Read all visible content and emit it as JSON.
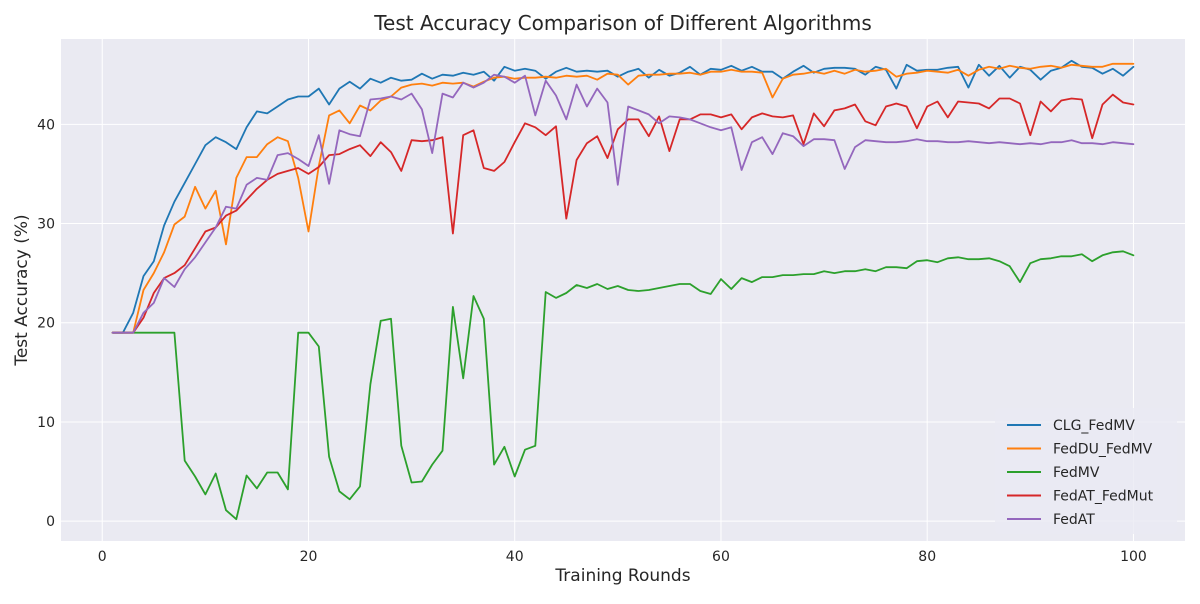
{
  "chart_data": {
    "type": "line",
    "title": "Test Accuracy Comparison of Different Algorithms",
    "xlabel": "Training Rounds",
    "ylabel": "Test Accuracy (%)",
    "xlim": [
      -4,
      105
    ],
    "ylim": [
      -2,
      48.6
    ],
    "xticks": [
      0,
      20,
      40,
      60,
      80,
      100
    ],
    "yticks": [
      0,
      10,
      20,
      30,
      40
    ],
    "grid": true,
    "legend_position": "lower-right",
    "x": [
      1,
      2,
      3,
      4,
      5,
      6,
      7,
      8,
      9,
      10,
      11,
      12,
      13,
      14,
      15,
      16,
      17,
      18,
      19,
      20,
      21,
      22,
      23,
      24,
      25,
      26,
      27,
      28,
      29,
      30,
      31,
      32,
      33,
      34,
      35,
      36,
      37,
      38,
      39,
      40,
      41,
      42,
      43,
      44,
      45,
      46,
      47,
      48,
      49,
      50,
      51,
      52,
      53,
      54,
      55,
      56,
      57,
      58,
      59,
      60,
      61,
      62,
      63,
      64,
      65,
      66,
      67,
      68,
      69,
      70,
      71,
      72,
      73,
      74,
      75,
      76,
      77,
      78,
      79,
      80,
      81,
      82,
      83,
      84,
      85,
      86,
      87,
      88,
      89,
      90,
      91,
      92,
      93,
      94,
      95,
      96,
      97,
      98,
      99,
      100
    ],
    "series": [
      {
        "name": "CLG_FedMV",
        "color": "#1f77b4",
        "values": [
          19.0,
          19.0,
          21.0,
          24.7,
          26.2,
          29.8,
          32.2,
          34.1,
          36.0,
          37.9,
          38.7,
          38.2,
          37.5,
          39.7,
          41.3,
          41.1,
          41.8,
          42.5,
          42.8,
          42.8,
          43.6,
          42.0,
          43.6,
          44.3,
          43.6,
          44.6,
          44.2,
          44.7,
          44.4,
          44.5,
          45.1,
          44.6,
          45.0,
          44.9,
          45.2,
          45.0,
          45.3,
          44.4,
          45.8,
          45.4,
          45.6,
          45.4,
          44.6,
          45.3,
          45.7,
          45.3,
          45.4,
          45.3,
          45.4,
          44.8,
          45.3,
          45.6,
          44.7,
          45.5,
          44.9,
          45.2,
          45.8,
          45.0,
          45.6,
          45.5,
          45.9,
          45.4,
          45.8,
          45.3,
          45.3,
          44.6,
          45.3,
          45.9,
          45.2,
          45.6,
          45.7,
          45.7,
          45.6,
          45.0,
          45.8,
          45.5,
          43.6,
          46.0,
          45.4,
          45.5,
          45.5,
          45.7,
          45.8,
          43.7,
          46.0,
          44.9,
          45.9,
          44.7,
          45.8,
          45.5,
          44.5,
          45.4,
          45.7,
          46.4,
          45.8,
          45.7,
          45.1,
          45.6,
          44.9,
          45.8
        ]
      },
      {
        "name": "FedDU_FedMV",
        "color": "#ff7f0e",
        "values": [
          19.0,
          19.0,
          19.0,
          23.3,
          25.0,
          27.1,
          29.9,
          30.7,
          33.7,
          31.5,
          33.3,
          27.9,
          34.6,
          36.7,
          36.7,
          38.0,
          38.7,
          38.3,
          34.6,
          29.2,
          35.8,
          40.9,
          41.4,
          40.1,
          41.9,
          41.4,
          42.4,
          42.8,
          43.7,
          44.0,
          44.1,
          43.9,
          44.2,
          44.1,
          44.2,
          43.8,
          44.3,
          44.7,
          44.8,
          44.6,
          44.7,
          44.7,
          44.8,
          44.7,
          44.9,
          44.8,
          44.9,
          44.5,
          45.1,
          45.0,
          44.0,
          44.9,
          45.0,
          45.0,
          45.1,
          45.1,
          45.2,
          45.0,
          45.3,
          45.3,
          45.5,
          45.3,
          45.3,
          45.2,
          42.7,
          44.6,
          45.0,
          45.1,
          45.3,
          45.1,
          45.4,
          45.1,
          45.5,
          45.3,
          45.4,
          45.6,
          44.8,
          45.1,
          45.2,
          45.4,
          45.3,
          45.2,
          45.5,
          44.9,
          45.5,
          45.8,
          45.6,
          45.9,
          45.7,
          45.6,
          45.8,
          45.9,
          45.7,
          46.0,
          45.9,
          45.8,
          45.8,
          46.1,
          46.1,
          46.1
        ]
      },
      {
        "name": "FedMV",
        "color": "#2ca02c",
        "values": [
          19.0,
          19.0,
          19.0,
          19.0,
          19.0,
          19.0,
          19.0,
          6.1,
          4.5,
          2.7,
          4.8,
          1.1,
          0.2,
          4.6,
          3.3,
          4.9,
          4.9,
          3.2,
          19.0,
          19.0,
          17.6,
          6.5,
          3.0,
          2.2,
          3.5,
          13.8,
          20.2,
          20.4,
          7.6,
          3.9,
          4.0,
          5.7,
          7.1,
          21.6,
          14.4,
          22.7,
          20.4,
          5.7,
          7.5,
          4.5,
          7.2,
          7.6,
          23.1,
          22.5,
          23.0,
          23.8,
          23.5,
          23.9,
          23.4,
          23.7,
          23.3,
          23.2,
          23.3,
          23.5,
          23.7,
          23.9,
          23.9,
          23.2,
          22.9,
          24.4,
          23.4,
          24.5,
          24.1,
          24.6,
          24.6,
          24.8,
          24.8,
          24.9,
          24.9,
          25.2,
          25.0,
          25.2,
          25.2,
          25.4,
          25.2,
          25.6,
          25.6,
          25.5,
          26.2,
          26.3,
          26.1,
          26.5,
          26.6,
          26.4,
          26.4,
          26.5,
          26.2,
          25.7,
          24.1,
          26.0,
          26.4,
          26.5,
          26.7,
          26.7,
          26.9,
          26.2,
          26.8,
          27.1,
          27.2,
          26.8
        ]
      },
      {
        "name": "FedAT_FedMut",
        "color": "#d62728",
        "values": [
          19.0,
          19.0,
          19.0,
          20.5,
          23.0,
          24.5,
          25.0,
          25.8,
          27.5,
          29.2,
          29.6,
          30.8,
          31.3,
          32.4,
          33.5,
          34.4,
          35.0,
          35.3,
          35.6,
          35.0,
          35.7,
          36.9,
          37.0,
          37.5,
          37.9,
          36.8,
          38.2,
          37.2,
          35.3,
          38.4,
          38.3,
          38.4,
          38.7,
          29.0,
          38.9,
          39.4,
          35.6,
          35.3,
          36.2,
          38.2,
          40.1,
          39.7,
          38.9,
          39.8,
          30.5,
          36.4,
          38.1,
          38.8,
          36.6,
          39.5,
          40.5,
          40.5,
          38.8,
          40.8,
          37.3,
          40.5,
          40.5,
          41.0,
          41.0,
          40.7,
          41.0,
          39.5,
          40.7,
          41.1,
          40.8,
          40.7,
          40.9,
          38.0,
          41.1,
          39.8,
          41.4,
          41.6,
          42.0,
          40.3,
          39.9,
          41.8,
          42.1,
          41.8,
          39.6,
          41.8,
          42.3,
          40.7,
          42.3,
          42.2,
          42.1,
          41.6,
          42.6,
          42.6,
          42.1,
          38.9,
          42.3,
          41.3,
          42.4,
          42.6,
          42.5,
          38.6,
          42.0,
          43.0,
          42.2,
          42.0
        ]
      },
      {
        "name": "FedAT",
        "color": "#9467bd",
        "values": [
          19.0,
          19.0,
          19.0,
          21.0,
          22.0,
          24.5,
          23.6,
          25.4,
          26.6,
          28.1,
          29.6,
          31.7,
          31.5,
          33.9,
          34.6,
          34.4,
          36.9,
          37.1,
          36.5,
          35.8,
          38.9,
          34.0,
          39.4,
          39.0,
          38.8,
          42.5,
          42.6,
          42.8,
          42.5,
          43.1,
          41.5,
          37.1,
          43.1,
          42.7,
          44.2,
          43.7,
          44.2,
          45.0,
          44.8,
          44.2,
          44.9,
          40.9,
          44.4,
          42.9,
          40.5,
          44.0,
          41.8,
          43.6,
          42.2,
          33.9,
          41.8,
          41.4,
          41.0,
          40.1,
          40.8,
          40.7,
          40.5,
          40.1,
          39.7,
          39.4,
          39.7,
          35.4,
          38.2,
          38.7,
          37.0,
          39.1,
          38.8,
          37.8,
          38.5,
          38.5,
          38.4,
          35.5,
          37.7,
          38.4,
          38.3,
          38.2,
          38.2,
          38.3,
          38.5,
          38.3,
          38.3,
          38.2,
          38.2,
          38.3,
          38.2,
          38.1,
          38.2,
          38.1,
          38.0,
          38.1,
          38.0,
          38.2,
          38.2,
          38.4,
          38.1,
          38.1,
          38.0,
          38.2,
          38.1,
          38.0
        ]
      }
    ]
  }
}
